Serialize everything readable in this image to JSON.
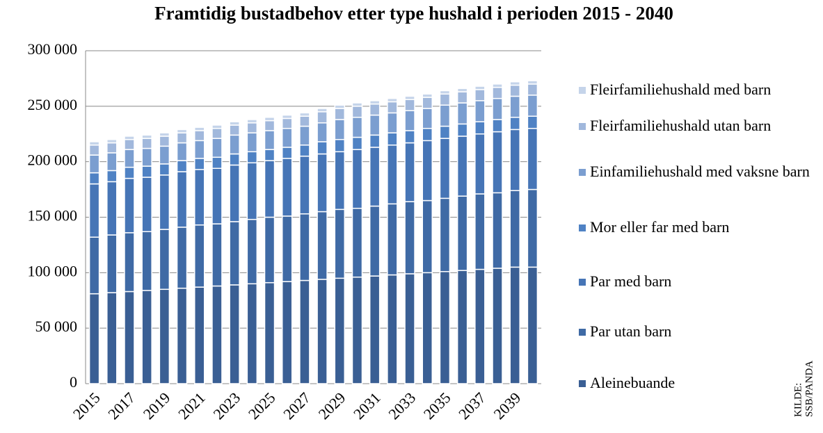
{
  "chart_data": {
    "type": "stacked_bar",
    "title": "Framtidig bustadbehov etter type hushald i perioden 2015 - 2040",
    "source_lines": [
      "KILDE:",
      "SSB/PANDA"
    ],
    "categories": [
      "2015",
      null,
      "2017",
      null,
      "2019",
      null,
      "2021",
      null,
      "2023",
      null,
      "2025",
      null,
      "2027",
      null,
      "2029",
      null,
      "2031",
      null,
      "2033",
      null,
      "2035",
      null,
      "2037",
      null,
      "2039",
      null
    ],
    "series": [
      {
        "name": "Aleinebuande",
        "color": "#3a5f94",
        "values": [
          81000,
          82000,
          83000,
          84000,
          85000,
          86000,
          87000,
          88000,
          89000,
          90000,
          91000,
          92000,
          93000,
          94000,
          95000,
          96000,
          97000,
          98000,
          99000,
          100000,
          101000,
          102000,
          103000,
          104000,
          105000,
          105000
        ]
      },
      {
        "name": "Par utan barn",
        "color": "#3f6aa5",
        "values": [
          51000,
          52000,
          53000,
          53000,
          54000,
          55000,
          56000,
          56000,
          57000,
          58000,
          59000,
          59000,
          60000,
          61000,
          62000,
          62000,
          63000,
          64000,
          65000,
          65000,
          66000,
          67000,
          68000,
          68000,
          69000,
          70000
        ]
      },
      {
        "name": "Par med barn",
        "color": "#4675b6",
        "values": [
          48000,
          48000,
          49000,
          49000,
          49000,
          50000,
          50000,
          50000,
          51000,
          51000,
          51000,
          52000,
          52000,
          52000,
          52000,
          53000,
          53000,
          53000,
          53000,
          54000,
          54000,
          54000,
          54000,
          55000,
          55000,
          55000
        ]
      },
      {
        "name": "Mor eller far med barn",
        "color": "#4f82c4",
        "values": [
          10000,
          10000,
          10000,
          10000,
          10000,
          10000,
          10000,
          10000,
          10000,
          10000,
          10000,
          10000,
          10000,
          11000,
          11000,
          11000,
          11000,
          11000,
          11000,
          11000,
          11000,
          11000,
          11000,
          11000,
          11000,
          11000
        ]
      },
      {
        "name": "Einfamiliehushald med vaksne barn",
        "color": "#7b9ed0",
        "values": [
          16000,
          16000,
          16000,
          16000,
          16000,
          16000,
          16000,
          17000,
          17000,
          17000,
          17000,
          17000,
          17000,
          17000,
          18000,
          18000,
          18000,
          18000,
          18000,
          18000,
          19000,
          19000,
          19000,
          19000,
          19000,
          19000
        ]
      },
      {
        "name": "Fleirfamiliehushald utan barn",
        "color": "#a1b8dc",
        "values": [
          9000,
          9000,
          9000,
          9000,
          9000,
          9000,
          9000,
          9000,
          9000,
          9000,
          9000,
          9000,
          9000,
          10000,
          10000,
          10000,
          10000,
          10000,
          10000,
          10000,
          10000,
          10000,
          10000,
          10000,
          10000,
          10000
        ]
      },
      {
        "name": "Fleirfamiliehushald med barn",
        "color": "#c5d4ea",
        "values": [
          3000,
          3000,
          3000,
          3000,
          3000,
          3000,
          3000,
          3000,
          3000,
          3000,
          3000,
          3000,
          3000,
          3000,
          3000,
          3000,
          3000,
          3000,
          3000,
          3000,
          3000,
          3000,
          3000,
          3000,
          3000,
          3000
        ]
      }
    ],
    "ylim": [
      0,
      300000
    ],
    "yticks": [
      0,
      {
        "value": 50000,
        "label": "50 000"
      },
      {
        "value": 100000,
        "label": "100 000"
      },
      {
        "value": 150000,
        "label": "150 000"
      },
      {
        "value": 200000,
        "label": "200 000"
      },
      {
        "value": 250000,
        "label": "250 000"
      },
      {
        "value": 300000,
        "label": "300 000"
      }
    ],
    "grid": true,
    "legend": "right"
  }
}
